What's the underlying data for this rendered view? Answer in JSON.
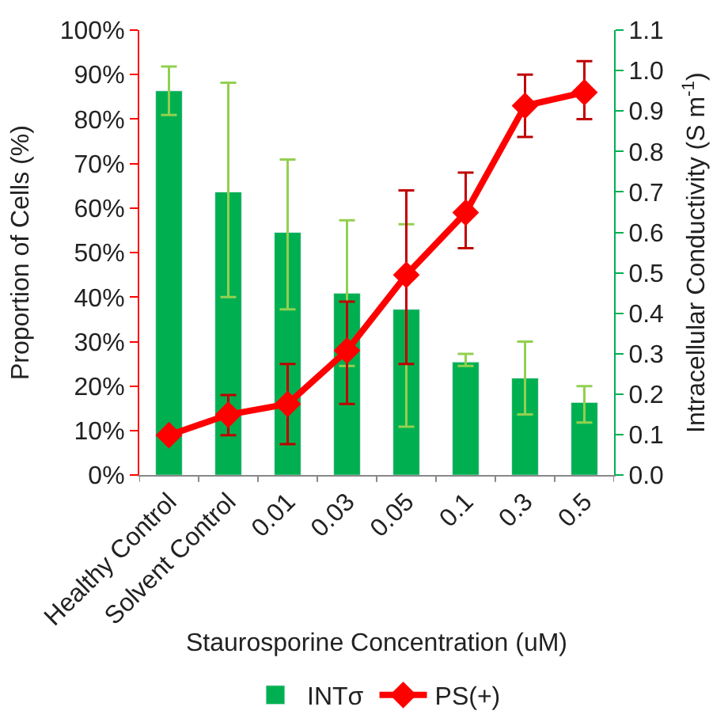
{
  "chart_data": {
    "type": "bar",
    "xlabel": "Staurosporine Concentration (uM)",
    "ylabel": "Proportion of Cells (%)",
    "y2label": "Intracellular Conductivity (S m$^{-1}$)",
    "categories": [
      "Healthy Control",
      "Solvent Control",
      "0.01",
      "0.03",
      "0.05",
      "0.1",
      "0.3",
      "0.5"
    ],
    "series": [
      {
        "name": "INTσ",
        "axis": "y2",
        "color": "#00b050",
        "values": [
          0.95,
          0.7,
          0.6,
          0.45,
          0.41,
          0.28,
          0.24,
          0.18
        ],
        "errors": [
          [
            0.89,
            1.01
          ],
          [
            0.44,
            0.97
          ],
          [
            0.41,
            0.78
          ],
          [
            0.27,
            0.63
          ],
          [
            0.12,
            0.62
          ],
          [
            0.27,
            0.3
          ],
          [
            0.15,
            0.33
          ],
          [
            0.13,
            0.22
          ]
        ]
      },
      {
        "name": "PS(+)",
        "type": "line",
        "axis": "y",
        "color": "#ff0000",
        "marker": "diamond",
        "values": [
          9,
          13.6,
          16,
          28,
          45,
          59,
          83,
          86
        ],
        "errors": [
          null,
          [
            9,
            18
          ],
          [
            7,
            25
          ],
          [
            16,
            39
          ],
          [
            25,
            64
          ],
          [
            51,
            68
          ],
          [
            76,
            90
          ],
          [
            80,
            93
          ]
        ]
      }
    ],
    "ylim": [
      0,
      100
    ],
    "yticks": [
      {
        "value": 0,
        "label": "0%"
      },
      {
        "value": 10,
        "label": "10%"
      },
      {
        "value": 20,
        "label": "20%"
      },
      {
        "value": 30,
        "label": "30%"
      },
      {
        "value": 40,
        "label": "40%"
      },
      {
        "value": 50,
        "label": "50%"
      },
      {
        "value": 60,
        "label": "60%"
      },
      {
        "value": 70,
        "label": "70%"
      },
      {
        "value": 80,
        "label": "80%"
      },
      {
        "value": 90,
        "label": "90%"
      },
      {
        "value": 100,
        "label": "100%"
      }
    ],
    "y2lim": [
      0,
      1.1
    ],
    "y2ticks": [
      {
        "value": 0,
        "label": "0.0"
      },
      {
        "value": 0.1,
        "label": "0.1"
      },
      {
        "value": 0.2,
        "label": "0.2"
      },
      {
        "value": 0.3,
        "label": "0.3"
      },
      {
        "value": 0.4,
        "label": "0.4"
      },
      {
        "value": 0.5,
        "label": "0.5"
      },
      {
        "value": 0.6,
        "label": "0.6"
      },
      {
        "value": 0.7,
        "label": "0.7"
      },
      {
        "value": 0.8,
        "label": "0.8"
      },
      {
        "value": 0.9,
        "label": "0.9"
      },
      {
        "value": 1,
        "label": "1.0"
      },
      {
        "value": 1.1,
        "label": "1.1"
      }
    ],
    "legend": "bottom",
    "line_style": "solid"
  }
}
